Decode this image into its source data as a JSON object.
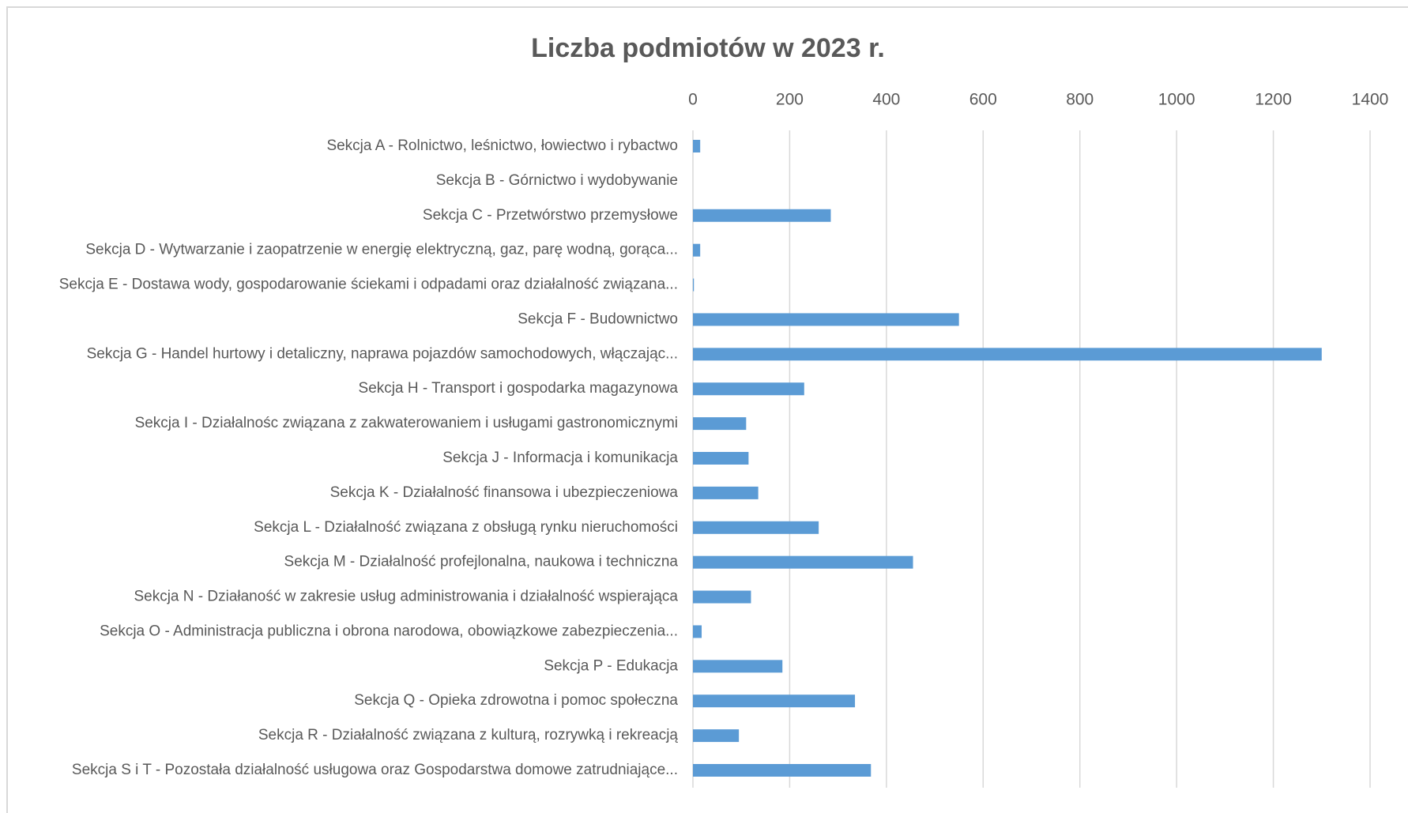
{
  "chart_data": {
    "type": "bar",
    "orientation": "horizontal",
    "title": "Liczba podmiotów w 2023 r.",
    "categories": [
      "Sekcja A - Rolnictwo, leśnictwo, łowiectwo i rybactwo",
      "Sekcja B - Górnictwo i wydobywanie",
      "Sekcja C - Przetwórstwo przemysłowe",
      "Sekcja D - Wytwarzanie i zaopatrzenie w energię elektryczną, gaz, parę wodną, gorąca...",
      "Sekcja E - Dostawa wody, gospodarowanie ściekami i odpadami oraz działalność związana...",
      "Sekcja F - Budownictwo",
      "Sekcja G - Handel hurtowy i detaliczny, naprawa pojazdów samochodowych, włączając...",
      "Sekcja H - Transport i gospodarka magazynowa",
      "Sekcja I - Działalnośc związana z zakwaterowaniem i usługami gastronomicznymi",
      "Sekcja J - Informacja i komunikacja",
      "Sekcja K - Działalność finansowa i ubezpieczeniowa",
      "Sekcja L - Działalność związana z obsługą rynku nieruchomości",
      "Sekcja M - Działalność profejlonalna, naukowa i techniczna",
      "Sekcja N - Działaność w zakresie usług administrowania i działalność wspierająca",
      "Sekcja O - Administracja publiczna i obrona narodowa, obowiązkowe zabezpieczenia...",
      "Sekcja P - Edukacja",
      "Sekcja Q - Opieka zdrowotna i pomoc społeczna",
      "Sekcja R - Działalność związana z kulturą, rozrywką i rekreacją",
      "Sekcja S i T - Pozostała działalność usługowa oraz Gospodarstwa domowe zatrudniające..."
    ],
    "values": [
      15,
      0,
      285,
      15,
      2,
      550,
      1300,
      230,
      110,
      115,
      135,
      260,
      455,
      120,
      18,
      185,
      335,
      95,
      368
    ],
    "color": "#5b9bd5",
    "xlim": [
      0,
      1400
    ],
    "xticks": [
      0,
      200,
      400,
      600,
      800,
      1000,
      1200,
      1400
    ],
    "grid": true
  }
}
